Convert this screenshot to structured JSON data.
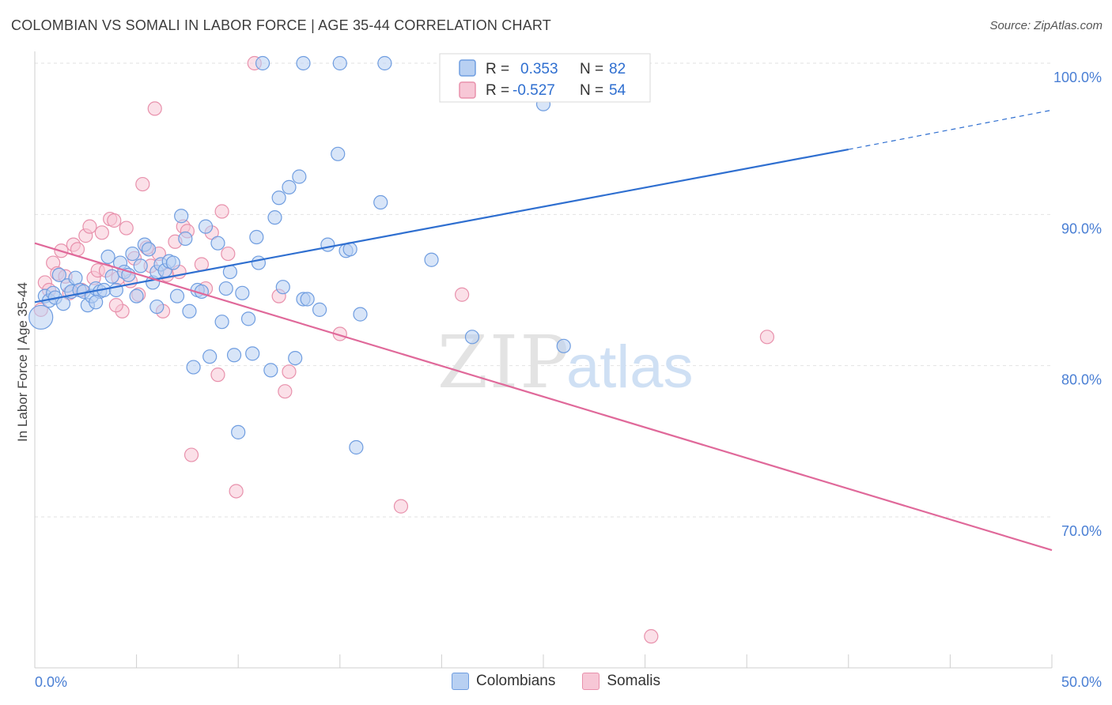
{
  "header": {
    "title": "COLOMBIAN VS SOMALI IN LABOR FORCE | AGE 35-44 CORRELATION CHART",
    "source": "Source: ZipAtlas.com"
  },
  "colors": {
    "blue_fill": "#b8d0f2",
    "blue_stroke": "#6f9de0",
    "blue_line": "#2f6fd0",
    "pink_fill": "#f7c7d6",
    "pink_stroke": "#e891ac",
    "pink_line": "#e0699a",
    "axis_text": "#4a7fd4"
  },
  "legend_box": {
    "rows": [
      {
        "r_label": "R =",
        "r_value": "0.353",
        "n_label": "N =",
        "n_value": "82"
      },
      {
        "r_label": "R =",
        "r_value": "-0.527",
        "n_label": "N =",
        "n_value": "54"
      }
    ]
  },
  "legend_bottom": {
    "blue": "Colombians",
    "pink": "Somalis"
  },
  "watermark": {
    "zip": "ZIP",
    "atlas": "atlas"
  },
  "chart_data": {
    "type": "scatter",
    "title": "COLOMBIAN VS SOMALI IN LABOR FORCE | AGE 35-44 CORRELATION CHART",
    "ylabel": "In Labor Force | Age 35-44",
    "xlim": [
      0,
      50
    ],
    "ylim": [
      60,
      103
    ],
    "x_tick_labels": [
      "0.0%",
      "50.0%"
    ],
    "y_ticks": [
      70,
      80,
      90,
      100
    ],
    "y_tick_labels": [
      "70.0%",
      "80.0%",
      "90.0%",
      "100.0%"
    ],
    "grid": true,
    "series": [
      {
        "name": "Colombians",
        "r": 0.353,
        "n": 82,
        "trend": {
          "x0": 0,
          "y0": 84.2,
          "x1": 40,
          "y1": 94.3,
          "dash_x1": 50,
          "dash_y1": 96.9
        },
        "points": [
          [
            0.3,
            83.2
          ],
          [
            0.5,
            84.6
          ],
          [
            0.7,
            84.3
          ],
          [
            0.9,
            84.8
          ],
          [
            1.0,
            84.5
          ],
          [
            1.2,
            86.0
          ],
          [
            1.4,
            84.1
          ],
          [
            1.6,
            85.3
          ],
          [
            1.8,
            84.9
          ],
          [
            2.0,
            85.8
          ],
          [
            2.2,
            85.0
          ],
          [
            2.4,
            84.9
          ],
          [
            2.6,
            84.0
          ],
          [
            2.8,
            84.6
          ],
          [
            3.0,
            85.1
          ],
          [
            3.2,
            84.9
          ],
          [
            3.4,
            85.0
          ],
          [
            3.6,
            87.2
          ],
          [
            3.8,
            85.9
          ],
          [
            4.0,
            85.0
          ],
          [
            4.2,
            86.8
          ],
          [
            4.4,
            86.2
          ],
          [
            4.6,
            86.0
          ],
          [
            4.8,
            87.4
          ],
          [
            5.0,
            84.6
          ],
          [
            5.2,
            86.6
          ],
          [
            5.4,
            88.0
          ],
          [
            5.6,
            87.7
          ],
          [
            5.8,
            85.5
          ],
          [
            6.0,
            86.2
          ],
          [
            6.2,
            86.7
          ],
          [
            6.4,
            86.3
          ],
          [
            6.6,
            86.9
          ],
          [
            6.8,
            86.8
          ],
          [
            7.0,
            84.6
          ],
          [
            7.2,
            89.9
          ],
          [
            7.4,
            88.4
          ],
          [
            7.6,
            83.6
          ],
          [
            7.8,
            79.9
          ],
          [
            8.0,
            85.0
          ],
          [
            8.2,
            84.9
          ],
          [
            8.4,
            89.2
          ],
          [
            8.6,
            80.6
          ],
          [
            9.0,
            88.1
          ],
          [
            9.2,
            82.9
          ],
          [
            9.4,
            85.1
          ],
          [
            9.6,
            86.2
          ],
          [
            9.8,
            80.7
          ],
          [
            10.0,
            75.6
          ],
          [
            10.2,
            84.8
          ],
          [
            10.5,
            83.1
          ],
          [
            10.7,
            80.8
          ],
          [
            10.9,
            88.5
          ],
          [
            11.0,
            86.8
          ],
          [
            11.2,
            100.0
          ],
          [
            11.6,
            79.7
          ],
          [
            11.8,
            89.8
          ],
          [
            12.0,
            91.1
          ],
          [
            12.2,
            85.2
          ],
          [
            12.5,
            91.8
          ],
          [
            12.8,
            80.5
          ],
          [
            13.0,
            92.5
          ],
          [
            13.2,
            84.4
          ],
          [
            13.4,
            84.4
          ],
          [
            13.2,
            100.0
          ],
          [
            14.0,
            83.7
          ],
          [
            14.4,
            88.0
          ],
          [
            14.9,
            94.0
          ],
          [
            15.0,
            100.0
          ],
          [
            15.3,
            87.6
          ],
          [
            15.5,
            87.7
          ],
          [
            15.8,
            74.6
          ],
          [
            16.0,
            83.4
          ],
          [
            17.2,
            100.0
          ],
          [
            17.0,
            90.8
          ],
          [
            19.5,
            87.0
          ],
          [
            21.5,
            81.9
          ],
          [
            25.0,
            97.3
          ],
          [
            26.0,
            81.3
          ],
          [
            27.0,
            100.0
          ],
          [
            3.0,
            84.2
          ],
          [
            6.0,
            83.9
          ]
        ]
      },
      {
        "name": "Somalis",
        "r": -0.527,
        "n": 54,
        "trend": {
          "x0": 0,
          "y0": 88.1,
          "x1": 50,
          "y1": 67.8
        },
        "points": [
          [
            0.3,
            83.7
          ],
          [
            0.5,
            85.5
          ],
          [
            0.7,
            85.0
          ],
          [
            0.9,
            86.8
          ],
          [
            1.1,
            86.1
          ],
          [
            1.3,
            87.6
          ],
          [
            1.5,
            85.9
          ],
          [
            1.7,
            84.8
          ],
          [
            1.9,
            88.0
          ],
          [
            2.1,
            87.7
          ],
          [
            2.3,
            85.0
          ],
          [
            2.5,
            88.6
          ],
          [
            2.7,
            89.2
          ],
          [
            2.9,
            85.8
          ],
          [
            3.1,
            86.3
          ],
          [
            3.3,
            88.8
          ],
          [
            3.5,
            86.3
          ],
          [
            3.7,
            89.7
          ],
          [
            3.9,
            89.6
          ],
          [
            4.1,
            85.8
          ],
          [
            4.3,
            83.6
          ],
          [
            4.5,
            89.1
          ],
          [
            4.7,
            85.6
          ],
          [
            4.9,
            87.1
          ],
          [
            5.1,
            84.7
          ],
          [
            5.3,
            92.0
          ],
          [
            5.5,
            87.8
          ],
          [
            5.7,
            86.6
          ],
          [
            5.9,
            97.0
          ],
          [
            6.1,
            87.4
          ],
          [
            6.3,
            83.6
          ],
          [
            6.5,
            86.0
          ],
          [
            6.9,
            88.2
          ],
          [
            7.1,
            86.2
          ],
          [
            7.3,
            89.2
          ],
          [
            7.5,
            88.9
          ],
          [
            7.7,
            74.1
          ],
          [
            8.2,
            86.7
          ],
          [
            8.4,
            85.1
          ],
          [
            8.7,
            88.8
          ],
          [
            9.0,
            79.4
          ],
          [
            9.2,
            90.2
          ],
          [
            9.5,
            87.4
          ],
          [
            9.9,
            71.7
          ],
          [
            10.8,
            100.0
          ],
          [
            12.0,
            84.6
          ],
          [
            12.3,
            78.3
          ],
          [
            12.5,
            79.6
          ],
          [
            15.0,
            82.1
          ],
          [
            18.0,
            70.7
          ],
          [
            21.0,
            84.7
          ],
          [
            30.3,
            62.1
          ],
          [
            36.0,
            81.9
          ],
          [
            4.0,
            84.0
          ]
        ]
      }
    ]
  }
}
